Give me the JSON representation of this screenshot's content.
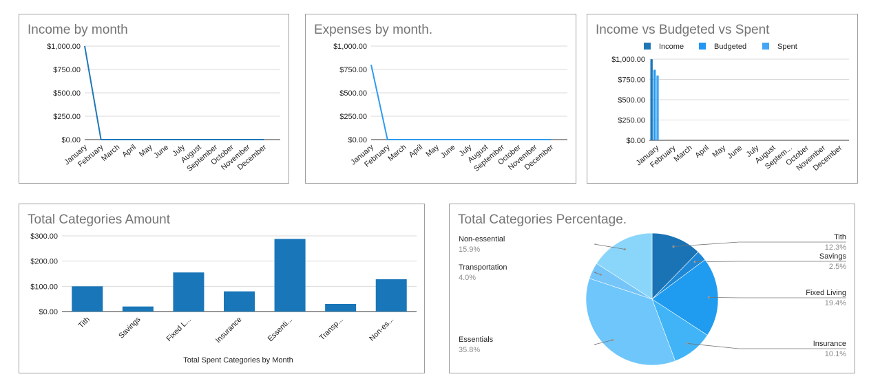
{
  "colors": {
    "income": "#1f77b8",
    "expense": "#2d9bf0",
    "budgeted": "#2196f3",
    "spent": "#42a5f5",
    "bar": "#1976b8",
    "pie": [
      "#1a73b5",
      "#1e88d6",
      "#1f9bef",
      "#40b4f7",
      "#6ec6fb",
      "#75c5f9",
      "#8ad6fb",
      "#4f9fd1"
    ]
  },
  "chart_data": [
    {
      "type": "line",
      "title": "Income by month",
      "categories": [
        "January",
        "February",
        "March",
        "April",
        "May",
        "June",
        "July",
        "August",
        "September",
        "October",
        "November",
        "December"
      ],
      "values": [
        1000,
        0,
        0,
        0,
        0,
        0,
        0,
        0,
        0,
        0,
        0,
        0
      ],
      "ylim": [
        0,
        1000
      ],
      "yticks": [
        0,
        250,
        500,
        750,
        1000
      ],
      "ytick_labels": [
        "$0.00",
        "$250.00",
        "$500.00",
        "$750.00",
        "$1,000.00"
      ]
    },
    {
      "type": "line",
      "title": "Expenses by month.",
      "categories": [
        "January",
        "February",
        "March",
        "April",
        "May",
        "June",
        "July",
        "August",
        "September",
        "October",
        "November",
        "December"
      ],
      "values": [
        800,
        0,
        0,
        0,
        0,
        0,
        0,
        0,
        0,
        0,
        0,
        0
      ],
      "ylim": [
        0,
        1000
      ],
      "yticks": [
        0,
        250,
        500,
        750,
        1000
      ],
      "ytick_labels": [
        "$0.00",
        "$250.00",
        "$500.00",
        "$750.00",
        "$1,000.00"
      ]
    },
    {
      "type": "bar",
      "title": "Income vs Budgeted vs Spent",
      "categories": [
        "January",
        "February",
        "March",
        "April",
        "May",
        "June",
        "July",
        "August",
        "Septem...",
        "October",
        "November",
        "December"
      ],
      "series": [
        {
          "name": "Income",
          "values": [
            1000,
            0,
            0,
            0,
            0,
            0,
            0,
            0,
            0,
            0,
            0,
            0
          ]
        },
        {
          "name": "Budgeted",
          "values": [
            870,
            0,
            0,
            0,
            0,
            0,
            0,
            0,
            0,
            0,
            0,
            0
          ]
        },
        {
          "name": "Spent",
          "values": [
            800,
            0,
            0,
            0,
            0,
            0,
            0,
            0,
            0,
            0,
            0,
            0
          ]
        }
      ],
      "ylim": [
        0,
        1000
      ],
      "yticks": [
        0,
        250,
        500,
        750,
        1000
      ],
      "ytick_labels": [
        "$0.00",
        "$250.00",
        "$500.00",
        "$750.00",
        "$1,000.00"
      ],
      "legend": "top"
    },
    {
      "type": "bar",
      "title": "Total Categories Amount",
      "xlabel": "Total Spent Categories by Month",
      "categories": [
        "Tith",
        "Savings",
        "Fixed L...",
        "Insurance",
        "Essenti...",
        "Transp...",
        "Non-es..."
      ],
      "values": [
        100,
        20,
        155,
        80,
        288,
        30,
        128
      ],
      "ylim": [
        0,
        300
      ],
      "yticks": [
        0,
        100,
        200,
        300
      ],
      "ytick_labels": [
        "$0.00",
        "$100.00",
        "$200.00",
        "$300.00"
      ]
    },
    {
      "type": "pie",
      "title": "Total Categories Percentage.",
      "slices": [
        {
          "label": "Tith",
          "value": 12.3,
          "pct": "12.3%"
        },
        {
          "label": "Savings",
          "value": 2.5,
          "pct": "2.5%"
        },
        {
          "label": "Fixed Living",
          "value": 19.4,
          "pct": "19.4%"
        },
        {
          "label": "Insurance",
          "value": 10.1,
          "pct": "10.1%"
        },
        {
          "label": "Essentials",
          "value": 35.8,
          "pct": "35.8%"
        },
        {
          "label": "Transportation",
          "value": 4.0,
          "pct": "4.0%"
        },
        {
          "label": "Non-essential",
          "value": 15.9,
          "pct": "15.9%"
        }
      ]
    }
  ]
}
